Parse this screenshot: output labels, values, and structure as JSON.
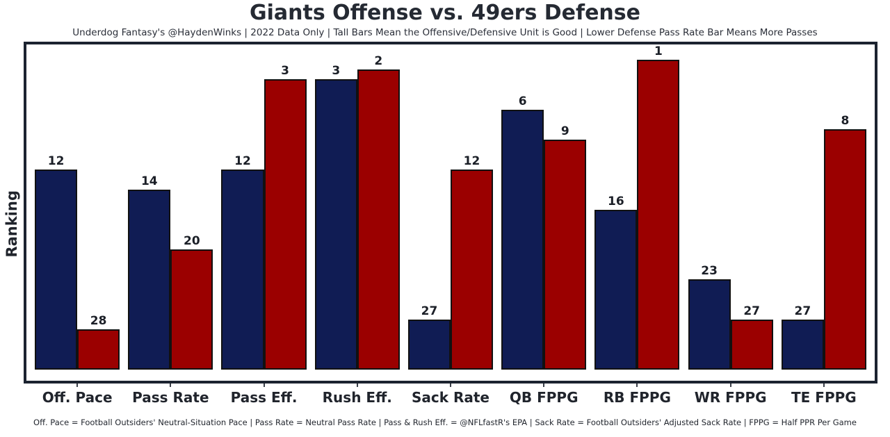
{
  "chart_data": {
    "type": "bar",
    "title": "Giants Offense vs. 49ers Defense",
    "subtitle": "Underdog Fantasy's @HaydenWinks | 2022 Data Only | Tall Bars Mean the Offensive/Defensive Unit is Good | Lower Defense Pass Rate Bar Means More Passes",
    "footnote": "Off. Pace = Football Outsiders' Neutral-Situation Pace | Pass Rate = Neutral Pass Rate | Pass & Rush Eff. = @NFLfastR's EPA | Sack Rate = Football Outsiders' Adjusted Sack Rate | FPPG = Half PPR Per Game",
    "ylabel": "Ranking",
    "xlabel": "",
    "categories": [
      "Off. Pace",
      "Pass Rate",
      "Pass Eff.",
      "Rush Eff.",
      "Sack Rate",
      "QB FPPG",
      "RB FPPG",
      "WR FPPG",
      "TE FPPG"
    ],
    "series": [
      {
        "name": "Giants Offense",
        "color": "#101c54",
        "values": [
          12,
          14,
          12,
          3,
          27,
          6,
          16,
          23,
          27
        ]
      },
      {
        "name": "49ers Defense",
        "color": "#9b0000",
        "values": [
          28,
          20,
          3,
          2,
          12,
          9,
          1,
          27,
          8
        ]
      }
    ],
    "value_semantics": "NFL ranking where 1 = best; taller bar = better rank; bar height drawn proportional to (32 - rank)",
    "ylim": [
      -1.1,
      32.5
    ],
    "grid": false,
    "legend": "none",
    "colors": {
      "offense_bar": "#101c54",
      "defense_bar": "#9b0000",
      "bar_outline": "#111111",
      "axis_frame": "#1c2330",
      "text": "#20242c"
    }
  }
}
